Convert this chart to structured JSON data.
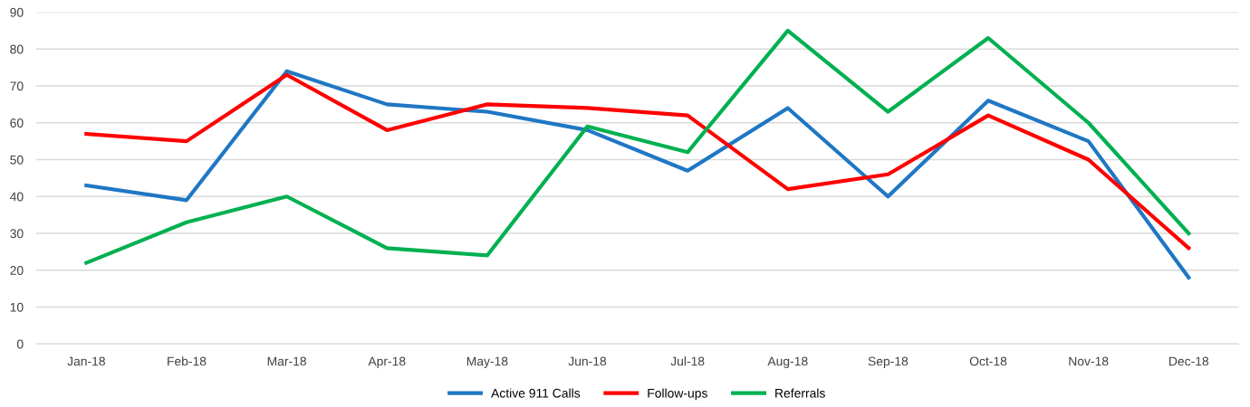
{
  "chart_data": {
    "type": "line",
    "categories": [
      "Jan-18",
      "Feb-18",
      "Mar-18",
      "Apr-18",
      "May-18",
      "Jun-18",
      "Jul-18",
      "Aug-18",
      "Sep-18",
      "Oct-18",
      "Nov-18",
      "Dec-18"
    ],
    "series": [
      {
        "name": "Active 911 Calls",
        "color": "#1f77c4",
        "values": [
          43,
          39,
          74,
          65,
          63,
          58,
          47,
          64,
          40,
          66,
          55,
          18
        ]
      },
      {
        "name": "Follow-ups",
        "color": "#ff0000",
        "values": [
          57,
          55,
          73,
          58,
          65,
          64,
          62,
          42,
          46,
          62,
          50,
          26
        ]
      },
      {
        "name": "Referrals",
        "color": "#00b050",
        "values": [
          22,
          33,
          40,
          26,
          24,
          59,
          52,
          85,
          63,
          83,
          60,
          30
        ]
      }
    ],
    "ylim": [
      0,
      90
    ],
    "yticks": [
      0,
      10,
      20,
      30,
      40,
      50,
      60,
      70,
      80,
      90
    ],
    "grid": "y",
    "legend": "bottom",
    "marker": "none",
    "line_style": "solid"
  }
}
